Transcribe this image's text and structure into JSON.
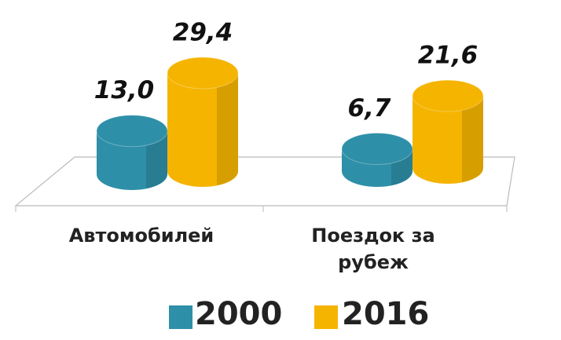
{
  "chart_data": {
    "type": "bar3d",
    "categories": [
      "Автомобилей",
      "Поездок за рубеж"
    ],
    "series": [
      {
        "name": "2000",
        "color": "#2e8fa8",
        "values": [
          13.0,
          6.7
        ],
        "value_labels": [
          "13,0",
          "6,7"
        ]
      },
      {
        "name": "2016",
        "color": "#f5b400",
        "values": [
          29.4,
          21.6
        ],
        "value_labels": [
          "29,4",
          "21,6"
        ]
      }
    ]
  }
}
